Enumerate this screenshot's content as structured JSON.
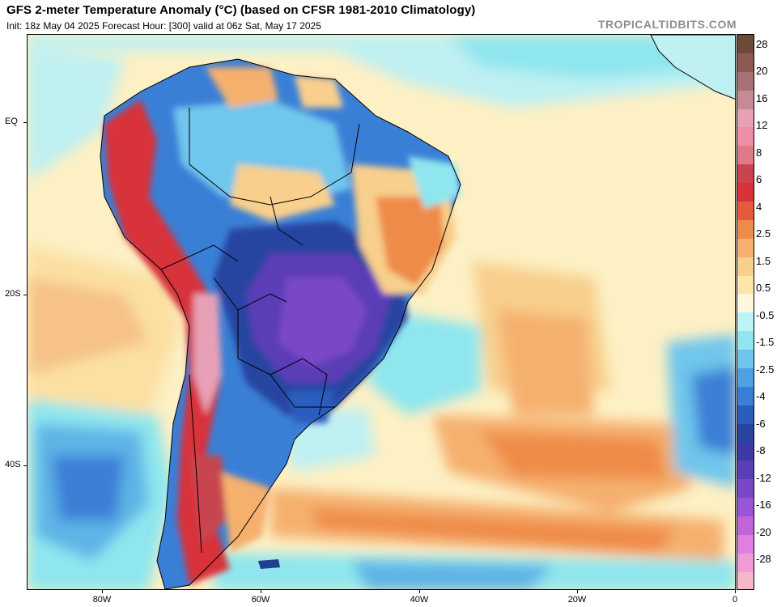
{
  "title": {
    "line1": "GFS 2-meter Temperature Anomaly (°C) (based on CFSR 1981-2010 Climatology)",
    "line2": "Init: 18z May 04 2025   Forecast Hour: [300]   valid at 06z Sat, May 17 2025"
  },
  "credit": "TROPICALTIDBITS.COM",
  "map": {
    "lat_labels": [
      "EQ",
      "20S",
      "40S"
    ],
    "lon_labels": [
      "80W",
      "60W",
      "40W",
      "20W",
      "0"
    ]
  },
  "colorbar": {
    "labels": [
      "28",
      "20",
      "16",
      "12",
      "8",
      "6",
      "4",
      "2.5",
      "1.5",
      "0.5",
      "-0.5",
      "-1.5",
      "-2.5",
      "-4",
      "-6",
      "-8",
      "-12",
      "-16",
      "-20",
      "-28"
    ],
    "colors": [
      "#6b4a3a",
      "#8c5a52",
      "#a77275",
      "#c58a95",
      "#e7a0b6",
      "#ef8fa3",
      "#e07a88",
      "#c8454f",
      "#d8323a",
      "#e55a3a",
      "#ef8b4a",
      "#f5b06e",
      "#f8cf8c",
      "#fce6a8",
      "#fff7dd",
      "#bff2f4",
      "#8fe6ee",
      "#6fc6ec",
      "#4fa2e2",
      "#3a7fd6",
      "#2a5dbd",
      "#2744a0",
      "#3c3aa6",
      "#5b3db8",
      "#7a47c9",
      "#9a55d6",
      "#c066d9",
      "#e07fe0",
      "#ee9bd6",
      "#f4b8c6"
    ]
  }
}
